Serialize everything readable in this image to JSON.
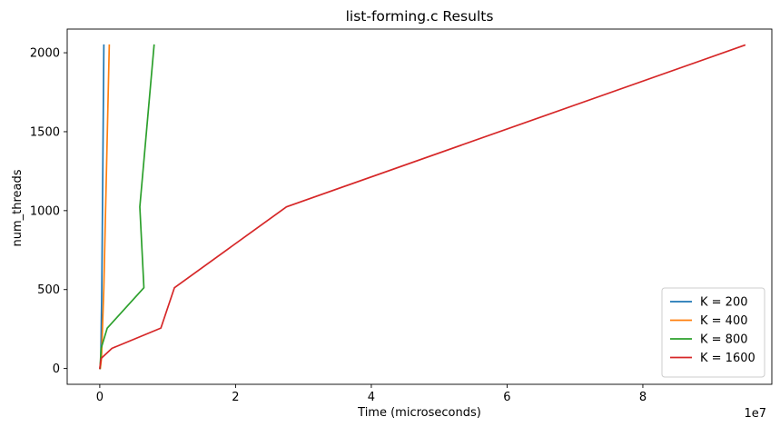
{
  "chart_data": {
    "type": "line",
    "title": "list-forming.c Results",
    "xlabel": "Time (microseconds)",
    "ylabel": "num_threads",
    "x_scale_label": "1e7",
    "x_ticks": [
      0,
      2,
      4,
      6,
      8
    ],
    "x_tick_multiplier": 10000000,
    "y_ticks": [
      0,
      500,
      1000,
      1500,
      2000
    ],
    "xlim": [
      -4800000,
      99000000
    ],
    "ylim": [
      -100,
      2150
    ],
    "grid": false,
    "legend_position": "lower-right",
    "series": [
      {
        "name": "K = 200",
        "color": "#1f77b4",
        "x": [
          50000,
          150000,
          300000,
          600000
        ],
        "y": [
          1,
          64,
          512,
          2048
        ]
      },
      {
        "name": "K = 400",
        "color": "#ff7f0e",
        "x": [
          80000,
          250000,
          600000,
          1400000
        ],
        "y": [
          1,
          64,
          512,
          2048
        ]
      },
      {
        "name": "K = 800",
        "color": "#2ca02c",
        "x": [
          40000,
          200000,
          1100000,
          6500000,
          5900000,
          8000000
        ],
        "y": [
          1,
          128,
          256,
          512,
          1024,
          2048
        ]
      },
      {
        "name": "K = 1600",
        "color": "#d62728",
        "x": [
          0,
          200000,
          1800000,
          9000000,
          11000000,
          27500000,
          95000000
        ],
        "y": [
          1,
          64,
          128,
          256,
          512,
          1024,
          2048
        ]
      }
    ]
  }
}
